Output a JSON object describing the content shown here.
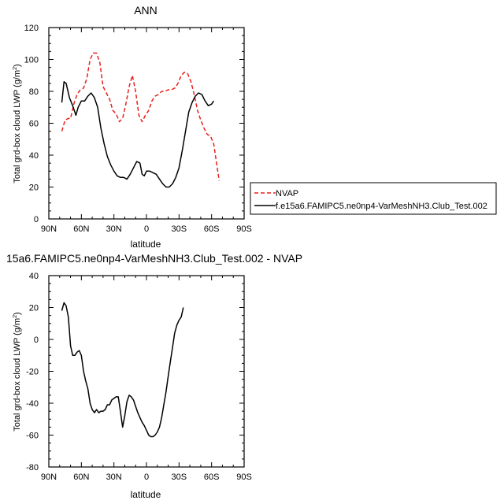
{
  "chart_data": [
    {
      "type": "line",
      "title": "ANN",
      "xlabel": "latitude",
      "ylabel": "Total grd-box cloud LWP",
      "ylabel_unit_base": "(g/m",
      "ylabel_unit_sup": "2",
      "ylabel_unit_end": ")",
      "x_direction": "north-to-south",
      "xlim": [
        90,
        -90
      ],
      "ylim": [
        0,
        120
      ],
      "xticks": [
        90,
        60,
        30,
        0,
        -30,
        -60,
        -90
      ],
      "xtick_labels": [
        "90N",
        "60N",
        "30N",
        "0",
        "30S",
        "60S",
        "90S"
      ],
      "yticks": [
        0,
        20,
        40,
        60,
        80,
        100,
        120
      ],
      "ytick_labels": [
        "0",
        "20",
        "40",
        "60",
        "80",
        "100",
        "120"
      ],
      "legend_position": "right",
      "series": [
        {
          "name": "NVAP",
          "color": "#e8201c",
          "dash": "dashed",
          "points": [
            [
              78,
              55
            ],
            [
              75,
              62
            ],
            [
              72,
              63
            ],
            [
              70,
              63
            ],
            [
              67,
              72
            ],
            [
              64,
              78
            ],
            [
              61,
              81
            ],
            [
              58,
              82
            ],
            [
              55,
              88
            ],
            [
              52,
              100
            ],
            [
              49,
              104
            ],
            [
              46,
              104
            ],
            [
              43,
              98
            ],
            [
              40,
              83
            ],
            [
              37,
              79
            ],
            [
              34,
              75
            ],
            [
              31,
              68
            ],
            [
              28,
              66
            ],
            [
              25,
              61
            ],
            [
              22,
              63
            ],
            [
              19,
              72
            ],
            [
              16,
              83
            ],
            [
              13,
              90
            ],
            [
              10,
              80
            ],
            [
              7,
              65
            ],
            [
              4,
              61
            ],
            [
              1,
              65
            ],
            [
              -2,
              68
            ],
            [
              -5,
              74
            ],
            [
              -8,
              77
            ],
            [
              -11,
              78
            ],
            [
              -14,
              80
            ],
            [
              -17,
              80
            ],
            [
              -20,
              81
            ],
            [
              -23,
              81
            ],
            [
              -26,
              82
            ],
            [
              -29,
              85
            ],
            [
              -32,
              90
            ],
            [
              -35,
              92
            ],
            [
              -38,
              91
            ],
            [
              -41,
              86
            ],
            [
              -44,
              78
            ],
            [
              -47,
              68
            ],
            [
              -50,
              62
            ],
            [
              -53,
              57
            ],
            [
              -56,
              53
            ],
            [
              -59,
              52
            ],
            [
              -62,
              47
            ],
            [
              -65,
              33
            ],
            [
              -67,
              24
            ]
          ]
        },
        {
          "name": "f.e15a6.FAMIPC5.ne0np4-VarMeshNH3.Club_Test.002",
          "color": "#000000",
          "dash": "solid",
          "points": [
            [
              78,
              73
            ],
            [
              76,
              86
            ],
            [
              74,
              85
            ],
            [
              71,
              76
            ],
            [
              68,
              71
            ],
            [
              65,
              65
            ],
            [
              63,
              70
            ],
            [
              60,
              74
            ],
            [
              57,
              74
            ],
            [
              54,
              77
            ],
            [
              51,
              79
            ],
            [
              48,
              76
            ],
            [
              45,
              70
            ],
            [
              42,
              57
            ],
            [
              39,
              47
            ],
            [
              36,
              39
            ],
            [
              33,
              34
            ],
            [
              30,
              30
            ],
            [
              27,
              27
            ],
            [
              24,
              26
            ],
            [
              21,
              26
            ],
            [
              18,
              25
            ],
            [
              15,
              28
            ],
            [
              12,
              32
            ],
            [
              9,
              36
            ],
            [
              6,
              35
            ],
            [
              4,
              28
            ],
            [
              2,
              27
            ],
            [
              0,
              30
            ],
            [
              -3,
              30
            ],
            [
              -6,
              29
            ],
            [
              -9,
              28
            ],
            [
              -12,
              25
            ],
            [
              -15,
              22
            ],
            [
              -18,
              20
            ],
            [
              -21,
              20
            ],
            [
              -24,
              22
            ],
            [
              -27,
              26
            ],
            [
              -30,
              32
            ],
            [
              -33,
              43
            ],
            [
              -36,
              55
            ],
            [
              -39,
              67
            ],
            [
              -42,
              73
            ],
            [
              -45,
              77
            ],
            [
              -48,
              79
            ],
            [
              -51,
              78
            ],
            [
              -54,
              74
            ],
            [
              -57,
              71
            ],
            [
              -60,
              72
            ],
            [
              -62,
              74
            ]
          ]
        }
      ]
    },
    {
      "type": "line",
      "title": "15a6.FAMIPC5.ne0np4-VarMeshNH3.Club_Test.002 - NVAP",
      "xlabel": "latitude",
      "ylabel": "Total grd-box cloud LWP",
      "ylabel_unit_base": "(g/m",
      "ylabel_unit_sup": "2",
      "ylabel_unit_end": ")",
      "x_direction": "north-to-south",
      "xlim": [
        90,
        -90
      ],
      "ylim": [
        -80,
        40
      ],
      "xticks": [
        90,
        60,
        30,
        0,
        -30,
        -60,
        -90
      ],
      "xtick_labels": [
        "90N",
        "60N",
        "30N",
        "0",
        "30S",
        "60S",
        "90S"
      ],
      "yticks": [
        -80,
        -60,
        -40,
        -20,
        0,
        20,
        40
      ],
      "ytick_labels": [
        "-80",
        "-60",
        "-40",
        "-20",
        "0",
        "20",
        "40"
      ],
      "series": [
        {
          "color": "#000000",
          "dash": "solid",
          "points": [
            [
              78,
              18
            ],
            [
              76,
              23
            ],
            [
              74,
              21
            ],
            [
              72,
              14
            ],
            [
              70,
              -4
            ],
            [
              68,
              -10
            ],
            [
              66,
              -10
            ],
            [
              64,
              -8
            ],
            [
              62,
              -7
            ],
            [
              60,
              -10
            ],
            [
              58,
              -20
            ],
            [
              56,
              -26
            ],
            [
              54,
              -31
            ],
            [
              52,
              -40
            ],
            [
              50,
              -44
            ],
            [
              48,
              -46
            ],
            [
              46,
              -44
            ],
            [
              44,
              -46
            ],
            [
              42,
              -45
            ],
            [
              40,
              -45
            ],
            [
              38,
              -44
            ],
            [
              36,
              -41
            ],
            [
              34,
              -41
            ],
            [
              32,
              -38
            ],
            [
              30,
              -37
            ],
            [
              28,
              -36
            ],
            [
              26,
              -36
            ],
            [
              24,
              -45
            ],
            [
              22,
              -55
            ],
            [
              20,
              -48
            ],
            [
              18,
              -39
            ],
            [
              16,
              -35
            ],
            [
              14,
              -36
            ],
            [
              12,
              -38
            ],
            [
              10,
              -42
            ],
            [
              8,
              -46
            ],
            [
              6,
              -49
            ],
            [
              4,
              -52
            ],
            [
              2,
              -54
            ],
            [
              0,
              -57
            ],
            [
              -2,
              -60
            ],
            [
              -4,
              -61
            ],
            [
              -6,
              -61
            ],
            [
              -8,
              -60
            ],
            [
              -10,
              -58
            ],
            [
              -12,
              -55
            ],
            [
              -14,
              -49
            ],
            [
              -16,
              -41
            ],
            [
              -18,
              -33
            ],
            [
              -20,
              -23
            ],
            [
              -22,
              -14
            ],
            [
              -24,
              -5
            ],
            [
              -26,
              4
            ],
            [
              -28,
              9
            ],
            [
              -30,
              12
            ],
            [
              -32,
              14
            ],
            [
              -34,
              20
            ]
          ]
        }
      ]
    }
  ]
}
